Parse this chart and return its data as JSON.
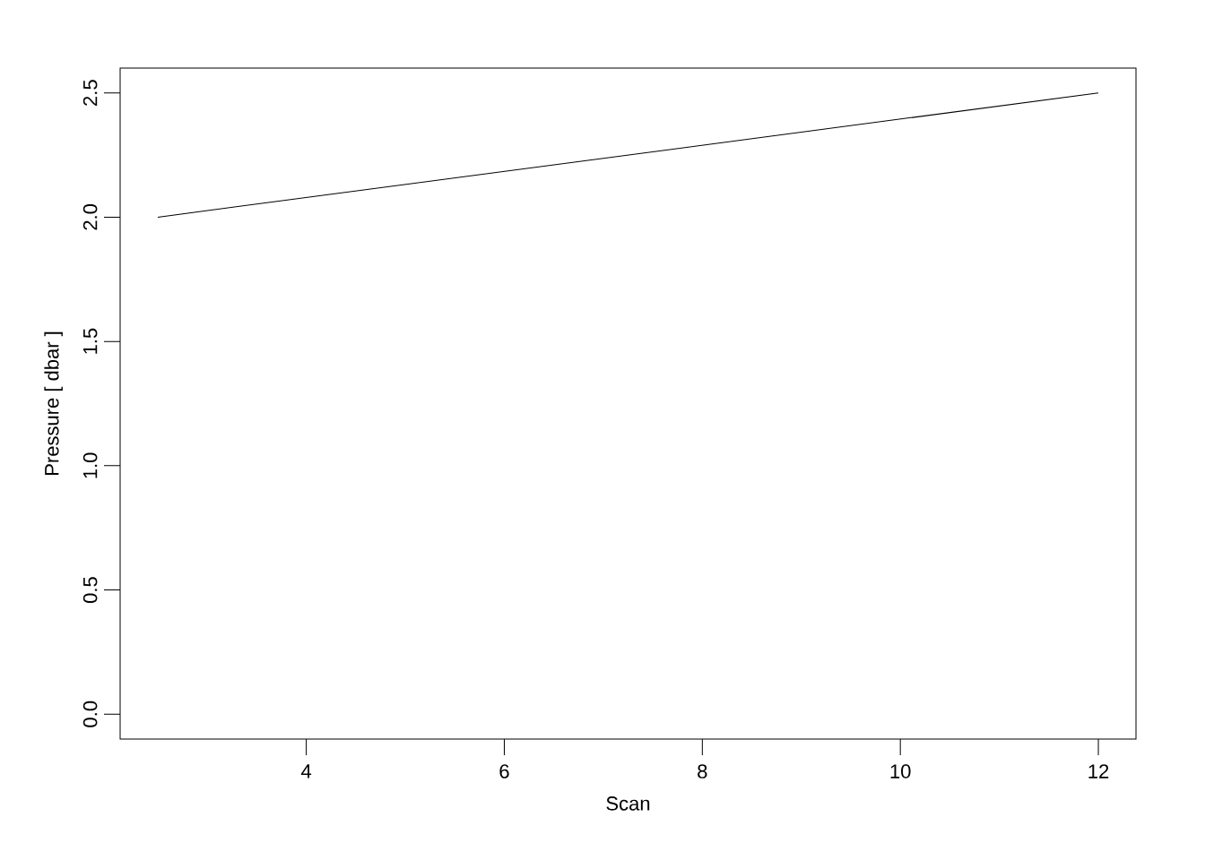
{
  "chart_data": {
    "type": "line",
    "xlabel": "Scan",
    "ylabel": "Pressure [ dbar ]",
    "x": [
      2.5,
      12
    ],
    "series": [
      {
        "color": "#000000",
        "values": [
          2.0,
          2.5
        ]
      }
    ],
    "xlim": [
      2.12,
      12.38
    ],
    "ylim": [
      -0.1,
      2.6
    ],
    "xticks": [
      4,
      6,
      8,
      10,
      12
    ],
    "yticks": [
      {
        "value": 0,
        "label": "0.0"
      },
      {
        "value": 0.5,
        "label": "0.5"
      },
      {
        "value": 1,
        "label": "1.0"
      },
      {
        "value": 1.5,
        "label": "1.5"
      },
      {
        "value": 2,
        "label": "2.0"
      },
      {
        "value": 2.5,
        "label": "2.5"
      }
    ],
    "grid": false,
    "marker": "none",
    "line_style": "solid"
  }
}
